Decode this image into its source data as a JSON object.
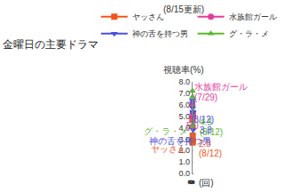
{
  "chart_data": {
    "type": "line",
    "title": "金曜日の主要ドラマ",
    "subtitle": "(8/15更新)",
    "y_label": "視聴率(%)",
    "x_label": "(回)",
    "x": [
      1,
      2,
      3,
      4,
      5,
      6
    ],
    "series": [
      {
        "name": "ヤッさん",
        "color": "#f2561d",
        "marker": "square",
        "values": [
          4.7,
          2.7,
          3.3,
          2.8,
          null,
          null
        ]
      },
      {
        "name": "水族館ガール",
        "color": "#e33d9c",
        "marker": "circle",
        "values": [
          6.0,
          4.1,
          5.2,
          5.2,
          5.0,
          null
        ]
      },
      {
        "name": "神の舌を持つ男",
        "color": "#4b4fdc",
        "marker": "triangle-down",
        "values": [
          6.4,
          6.2,
          5.7,
          5.4,
          5.3,
          3.8
        ]
      },
      {
        "name": "グ・ラ・メ",
        "color": "#5bb82d",
        "marker": "triangle-up",
        "values": [
          7.2,
          6.7,
          4.1,
          4.3,
          null,
          null
        ]
      }
    ],
    "xlim": [
      1,
      6
    ],
    "xticks": [
      1,
      2,
      3,
      4,
      5,
      6
    ],
    "ylim": [
      0,
      8
    ],
    "yticks": [
      {
        "value": 0,
        "label": "0.0"
      },
      {
        "value": 1,
        "label": "1.0"
      },
      {
        "value": 2,
        "label": "2.0"
      },
      {
        "value": 3,
        "label": "3.0"
      },
      {
        "value": 4,
        "label": "4.0"
      },
      {
        "value": 5,
        "label": "5.0"
      },
      {
        "value": 6,
        "label": "6.0"
      },
      {
        "value": 7,
        "label": "7.0"
      },
      {
        "value": 8,
        "label": "8.0"
      }
    ],
    "grid": true,
    "legend": "top-right",
    "annotations": [
      {
        "series": "ヤッさん",
        "text": "ヤッさん"
      },
      {
        "series": "ヤッさん",
        "text": "2.8"
      },
      {
        "series": "ヤッさん",
        "text": "(8/12)"
      },
      {
        "series": "グ・ラ・メ",
        "text": "グ・ラ・メ"
      },
      {
        "series": "グ・ラ・メ",
        "text": "4.3"
      },
      {
        "series": "グ・ラ・メ",
        "text": "(8/12)"
      },
      {
        "series": "水族館ガール",
        "text": "水族館ガール"
      },
      {
        "series": "水族館ガール",
        "text": "(7/29)"
      },
      {
        "series": "水族館ガール",
        "text": "5.0"
      },
      {
        "series": "神の舌を持つ男",
        "text": "(8/12)"
      },
      {
        "series": "神の舌を持つ男",
        "text": "3.8"
      },
      {
        "series": "神の舌を持つ男",
        "text": "神の舌を持つ男"
      }
    ]
  }
}
